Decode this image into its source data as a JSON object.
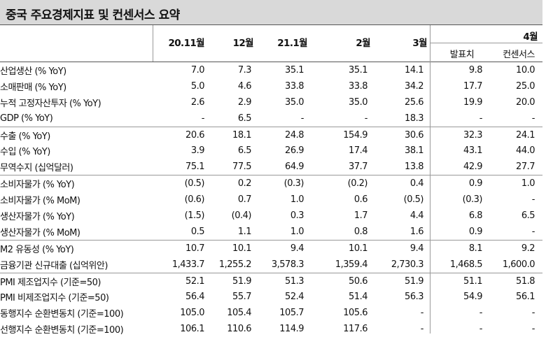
{
  "title": "중국 주요경제지표 및 컨센서스 요약",
  "header": {
    "periods": [
      "20.11월",
      "12월",
      "21.1월",
      "2월",
      "3월"
    ],
    "forecast_month": "4월",
    "sub": [
      "발표치",
      "컨센서스"
    ]
  },
  "rows": [
    {
      "label": "산업생산 (% YoY)",
      "vals": [
        "7.0",
        "7.3",
        "35.1",
        "35.1",
        "14.1",
        "9.8",
        "10.0"
      ],
      "gstart": false
    },
    {
      "label": "소매판매 (% YoY)",
      "vals": [
        "5.0",
        "4.6",
        "33.8",
        "33.8",
        "34.2",
        "17.7",
        "25.0"
      ],
      "gstart": false
    },
    {
      "label": "누적 고정자산투자 (% YoY)",
      "vals": [
        "2.6",
        "2.9",
        "35.0",
        "35.0",
        "25.6",
        "19.9",
        "20.0"
      ],
      "gstart": false
    },
    {
      "label": "GDP (% YoY)",
      "vals": [
        "-",
        "6.5",
        "-",
        "-",
        "18.3",
        "-",
        "-"
      ],
      "gstart": false
    },
    {
      "label": "수출 (% YoY)",
      "vals": [
        "20.6",
        "18.1",
        "24.8",
        "154.9",
        "30.6",
        "32.3",
        "24.1"
      ],
      "gstart": true
    },
    {
      "label": "수입 (% YoY)",
      "vals": [
        "3.9",
        "6.5",
        "26.9",
        "17.4",
        "38.1",
        "43.1",
        "44.0"
      ],
      "gstart": false
    },
    {
      "label": "무역수지 (십억달러)",
      "vals": [
        "75.1",
        "77.5",
        "64.9",
        "37.7",
        "13.8",
        "42.9",
        "27.7"
      ],
      "gstart": false
    },
    {
      "label": "소비자물가 (% YoY)",
      "vals": [
        "(0.5)",
        "0.2",
        "(0.3)",
        "(0.2)",
        "0.4",
        "0.9",
        "1.0"
      ],
      "gstart": true
    },
    {
      "label": "소비자물가 (% MoM)",
      "vals": [
        "(0.6)",
        "0.7",
        "1.0",
        "0.6",
        "(0.5)",
        "(0.3)",
        "-"
      ],
      "gstart": false
    },
    {
      "label": "생산자물가 (% YoY)",
      "vals": [
        "(1.5)",
        "(0.4)",
        "0.3",
        "1.7",
        "4.4",
        "6.8",
        "6.5"
      ],
      "gstart": false
    },
    {
      "label": "생산자물가 (% MoM)",
      "vals": [
        "0.5",
        "1.1",
        "1.0",
        "0.8",
        "1.6",
        "0.9",
        "-"
      ],
      "gstart": false
    },
    {
      "label": "M2 유동성 (% YoY)",
      "vals": [
        "10.7",
        "10.1",
        "9.4",
        "10.1",
        "9.4",
        "8.1",
        "9.2"
      ],
      "gstart": true
    },
    {
      "label": "금융기관 신규대출 (십억위안)",
      "vals": [
        "1,433.7",
        "1,255.2",
        "3,578.3",
        "1,359.4",
        "2,730.3",
        "1,468.5",
        "1,600.0"
      ],
      "gstart": false
    },
    {
      "label": "PMI 제조업지수 (기준=50)",
      "vals": [
        "52.1",
        "51.9",
        "51.3",
        "50.6",
        "51.9",
        "51.1",
        "51.8"
      ],
      "gstart": true
    },
    {
      "label": "PMI 비제조업지수 (기준=50)",
      "vals": [
        "56.4",
        "55.7",
        "52.4",
        "51.4",
        "56.3",
        "54.9",
        "56.1"
      ],
      "gstart": false
    },
    {
      "label": "동행지수 순환변동치 (기준=100)",
      "vals": [
        "105.0",
        "105.4",
        "105.7",
        "105.6",
        "-",
        "-",
        "-"
      ],
      "gstart": false
    },
    {
      "label": "선행지수 순환변동치 (기준=100)",
      "vals": [
        "106.1",
        "110.6",
        "114.9",
        "117.6",
        "-",
        "-",
        "-"
      ],
      "gstart": false
    }
  ]
}
